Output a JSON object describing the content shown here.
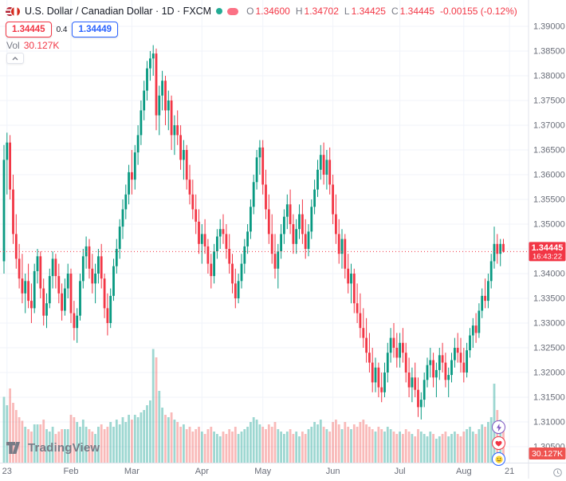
{
  "header": {
    "symbol_title": "U.S. Dollar / Canadian Dollar · 1D · FXCM",
    "ohlc": {
      "o_label": "O",
      "o": "1.34600",
      "h_label": "H",
      "h": "1.34702",
      "l_label": "L",
      "l": "1.34425",
      "c_label": "C",
      "c": "1.34445",
      "change": "-0.00155 (-0.12%)"
    },
    "bid": "1.34445",
    "spread": "0.4",
    "ask": "1.34449",
    "vol_label": "Vol",
    "vol_value": "30.127K"
  },
  "footer": {
    "logo_text": "TradingView"
  },
  "colors": {
    "up": "#089981",
    "down": "#f23645",
    "vol_up": "rgba(38,166,154,0.45)",
    "vol_down": "rgba(239,83,80,0.4)",
    "grid": "#f0f3fa",
    "axis_border": "#e0e3eb",
    "axis_text": "#696d78",
    "badge_red": "#f23645",
    "vol_badge": "#ef5350",
    "accent_blue": "#2962ff"
  },
  "chart_data": {
    "type": "candlestick",
    "title": "U.S. Dollar / Canadian Dollar",
    "interval": "1D",
    "exchange": "FXCM",
    "legend_position": "top-left",
    "grid": true,
    "y_axis": {
      "min": 1.305,
      "max": 1.39,
      "step": 0.005,
      "decimals": 5
    },
    "x_labels": [
      {
        "label": "23",
        "i": 1
      },
      {
        "label": "Feb",
        "i": 22
      },
      {
        "label": "Mar",
        "i": 42
      },
      {
        "label": "Apr",
        "i": 65
      },
      {
        "label": "May",
        "i": 85
      },
      {
        "label": "Jun",
        "i": 108
      },
      {
        "label": "Jul",
        "i": 130
      },
      {
        "label": "Aug",
        "i": 151
      },
      {
        "label": "21",
        "i": 166
      }
    ],
    "last_close": 1.34445,
    "last_price_label": "1.34445",
    "countdown": "16:43:22",
    "volume_label": "30.127K",
    "volume_units": "K",
    "candles_format": [
      "open",
      "high",
      "low",
      "close",
      "volume_K"
    ],
    "candles": [
      [
        1.3425,
        1.366,
        1.34,
        1.363,
        55
      ],
      [
        1.363,
        1.3685,
        1.356,
        1.3665,
        48
      ],
      [
        1.3665,
        1.368,
        1.355,
        1.357,
        62
      ],
      [
        1.357,
        1.36,
        1.346,
        1.348,
        50
      ],
      [
        1.348,
        1.352,
        1.341,
        1.343,
        44
      ],
      [
        1.343,
        1.346,
        1.337,
        1.339,
        38
      ],
      [
        1.339,
        1.344,
        1.334,
        1.336,
        35
      ],
      [
        1.336,
        1.34,
        1.332,
        1.3385,
        30
      ],
      [
        1.3385,
        1.342,
        1.333,
        1.3345,
        28
      ],
      [
        1.3345,
        1.338,
        1.33,
        1.333,
        26
      ],
      [
        1.333,
        1.342,
        1.332,
        1.3405,
        32
      ],
      [
        1.3405,
        1.345,
        1.338,
        1.3435,
        32
      ],
      [
        1.3435,
        1.3445,
        1.335,
        1.337,
        32
      ],
      [
        1.337,
        1.339,
        1.3295,
        1.3315,
        36
      ],
      [
        1.3315,
        1.336,
        1.329,
        1.334,
        28
      ],
      [
        1.334,
        1.341,
        1.333,
        1.3395,
        26
      ],
      [
        1.3395,
        1.3445,
        1.337,
        1.343,
        30
      ],
      [
        1.343,
        1.344,
        1.337,
        1.3395,
        24
      ],
      [
        1.3395,
        1.342,
        1.334,
        1.336,
        26
      ],
      [
        1.336,
        1.338,
        1.3305,
        1.3325,
        28
      ],
      [
        1.3325,
        1.339,
        1.3315,
        1.337,
        28
      ],
      [
        1.337,
        1.342,
        1.335,
        1.34,
        28
      ],
      [
        1.34,
        1.341,
        1.33,
        1.332,
        40
      ],
      [
        1.332,
        1.3345,
        1.3265,
        1.329,
        38
      ],
      [
        1.329,
        1.333,
        1.326,
        1.3315,
        34
      ],
      [
        1.3315,
        1.34,
        1.3305,
        1.3385,
        30
      ],
      [
        1.3385,
        1.345,
        1.337,
        1.3435,
        36
      ],
      [
        1.3435,
        1.3475,
        1.341,
        1.3455,
        30
      ],
      [
        1.3455,
        1.347,
        1.339,
        1.341,
        28
      ],
      [
        1.341,
        1.344,
        1.336,
        1.338,
        26
      ],
      [
        1.338,
        1.342,
        1.334,
        1.34,
        24
      ],
      [
        1.34,
        1.345,
        1.338,
        1.3435,
        30
      ],
      [
        1.3435,
        1.346,
        1.337,
        1.339,
        32
      ],
      [
        1.339,
        1.34,
        1.331,
        1.333,
        28
      ],
      [
        1.333,
        1.336,
        1.3275,
        1.33,
        30
      ],
      [
        1.33,
        1.337,
        1.329,
        1.3355,
        34
      ],
      [
        1.3355,
        1.343,
        1.3345,
        1.3415,
        30
      ],
      [
        1.3415,
        1.347,
        1.34,
        1.345,
        36
      ],
      [
        1.345,
        1.351,
        1.343,
        1.3495,
        32
      ],
      [
        1.3495,
        1.355,
        1.347,
        1.353,
        38
      ],
      [
        1.353,
        1.358,
        1.351,
        1.356,
        34
      ],
      [
        1.356,
        1.362,
        1.354,
        1.3605,
        40
      ],
      [
        1.3605,
        1.365,
        1.356,
        1.359,
        36
      ],
      [
        1.359,
        1.366,
        1.357,
        1.3645,
        40
      ],
      [
        1.3645,
        1.37,
        1.362,
        1.368,
        38
      ],
      [
        1.368,
        1.375,
        1.366,
        1.373,
        42
      ],
      [
        1.373,
        1.379,
        1.371,
        1.377,
        44
      ],
      [
        1.377,
        1.383,
        1.375,
        1.3815,
        48
      ],
      [
        1.3815,
        1.385,
        1.379,
        1.3835,
        52
      ],
      [
        1.3835,
        1.3862,
        1.38,
        1.3845,
        95
      ],
      [
        1.3845,
        1.3855,
        1.369,
        1.372,
        88
      ],
      [
        1.372,
        1.378,
        1.368,
        1.376,
        60
      ],
      [
        1.376,
        1.381,
        1.373,
        1.379,
        46
      ],
      [
        1.379,
        1.38,
        1.37,
        1.373,
        40
      ],
      [
        1.373,
        1.377,
        1.369,
        1.375,
        38
      ],
      [
        1.375,
        1.376,
        1.365,
        1.368,
        42
      ],
      [
        1.368,
        1.372,
        1.364,
        1.37,
        36
      ],
      [
        1.37,
        1.373,
        1.366,
        1.368,
        34
      ],
      [
        1.368,
        1.37,
        1.361,
        1.363,
        30
      ],
      [
        1.363,
        1.367,
        1.359,
        1.365,
        32
      ],
      [
        1.365,
        1.366,
        1.357,
        1.359,
        28
      ],
      [
        1.359,
        1.362,
        1.354,
        1.356,
        30
      ],
      [
        1.356,
        1.359,
        1.351,
        1.353,
        26
      ],
      [
        1.353,
        1.356,
        1.348,
        1.3505,
        28
      ],
      [
        1.3505,
        1.353,
        1.344,
        1.346,
        30
      ],
      [
        1.346,
        1.35,
        1.342,
        1.348,
        26
      ],
      [
        1.348,
        1.351,
        1.344,
        1.3455,
        24
      ],
      [
        1.3455,
        1.347,
        1.34,
        1.342,
        28
      ],
      [
        1.342,
        1.344,
        1.337,
        1.3395,
        30
      ],
      [
        1.3395,
        1.346,
        1.338,
        1.3445,
        26
      ],
      [
        1.3445,
        1.349,
        1.343,
        1.3475,
        24
      ],
      [
        1.3475,
        1.351,
        1.345,
        1.349,
        22
      ],
      [
        1.349,
        1.352,
        1.346,
        1.348,
        26
      ],
      [
        1.348,
        1.35,
        1.343,
        1.345,
        24
      ],
      [
        1.345,
        1.348,
        1.34,
        1.342,
        28
      ],
      [
        1.342,
        1.344,
        1.336,
        1.338,
        26
      ],
      [
        1.338,
        1.341,
        1.333,
        1.335,
        30
      ],
      [
        1.335,
        1.34,
        1.334,
        1.3385,
        24
      ],
      [
        1.3385,
        1.344,
        1.337,
        1.342,
        26
      ],
      [
        1.342,
        1.347,
        1.34,
        1.3455,
        28
      ],
      [
        1.3455,
        1.35,
        1.344,
        1.3485,
        30
      ],
      [
        1.3485,
        1.355,
        1.347,
        1.3535,
        34
      ],
      [
        1.3535,
        1.36,
        1.352,
        1.3585,
        38
      ],
      [
        1.3585,
        1.365,
        1.357,
        1.3635,
        36
      ],
      [
        1.3635,
        1.367,
        1.36,
        1.3655,
        32
      ],
      [
        1.3655,
        1.367,
        1.356,
        1.358,
        30
      ],
      [
        1.358,
        1.361,
        1.351,
        1.353,
        28
      ],
      [
        1.353,
        1.356,
        1.346,
        1.348,
        32
      ],
      [
        1.348,
        1.352,
        1.342,
        1.344,
        30
      ],
      [
        1.344,
        1.348,
        1.339,
        1.341,
        34
      ],
      [
        1.341,
        1.346,
        1.337,
        1.3445,
        28
      ],
      [
        1.3445,
        1.35,
        1.343,
        1.348,
        26
      ],
      [
        1.348,
        1.353,
        1.346,
        1.3515,
        24
      ],
      [
        1.3515,
        1.356,
        1.349,
        1.354,
        26
      ],
      [
        1.354,
        1.357,
        1.348,
        1.35,
        28
      ],
      [
        1.35,
        1.352,
        1.344,
        1.346,
        24
      ],
      [
        1.346,
        1.351,
        1.344,
        1.349,
        26
      ],
      [
        1.349,
        1.354,
        1.347,
        1.352,
        22
      ],
      [
        1.352,
        1.355,
        1.346,
        1.348,
        26
      ],
      [
        1.348,
        1.351,
        1.343,
        1.345,
        24
      ],
      [
        1.345,
        1.35,
        1.3435,
        1.3485,
        28
      ],
      [
        1.3485,
        1.355,
        1.347,
        1.3535,
        30
      ],
      [
        1.3535,
        1.359,
        1.352,
        1.357,
        34
      ],
      [
        1.357,
        1.363,
        1.3555,
        1.361,
        32
      ],
      [
        1.361,
        1.366,
        1.359,
        1.364,
        36
      ],
      [
        1.364,
        1.3665,
        1.358,
        1.36,
        30
      ],
      [
        1.36,
        1.365,
        1.357,
        1.363,
        28
      ],
      [
        1.363,
        1.3655,
        1.356,
        1.358,
        26
      ],
      [
        1.358,
        1.36,
        1.35,
        1.352,
        34
      ],
      [
        1.352,
        1.356,
        1.346,
        1.348,
        36
      ],
      [
        1.348,
        1.351,
        1.342,
        1.344,
        32
      ],
      [
        1.344,
        1.349,
        1.341,
        1.347,
        28
      ],
      [
        1.347,
        1.348,
        1.339,
        1.341,
        34
      ],
      [
        1.341,
        1.344,
        1.336,
        1.338,
        30
      ],
      [
        1.338,
        1.342,
        1.334,
        1.34,
        28
      ],
      [
        1.34,
        1.341,
        1.332,
        1.334,
        32
      ],
      [
        1.334,
        1.338,
        1.33,
        1.332,
        30
      ],
      [
        1.332,
        1.336,
        1.327,
        1.329,
        34
      ],
      [
        1.329,
        1.333,
        1.325,
        1.327,
        36
      ],
      [
        1.327,
        1.331,
        1.322,
        1.324,
        32
      ],
      [
        1.324,
        1.328,
        1.32,
        1.322,
        30
      ],
      [
        1.322,
        1.325,
        1.316,
        1.318,
        28
      ],
      [
        1.318,
        1.323,
        1.316,
        1.321,
        26
      ],
      [
        1.321,
        1.322,
        1.315,
        1.317,
        30
      ],
      [
        1.317,
        1.32,
        1.314,
        1.316,
        28
      ],
      [
        1.316,
        1.322,
        1.315,
        1.32,
        26
      ],
      [
        1.32,
        1.326,
        1.318,
        1.324,
        30
      ],
      [
        1.324,
        1.329,
        1.322,
        1.327,
        28
      ],
      [
        1.327,
        1.33,
        1.323,
        1.325,
        26
      ],
      [
        1.325,
        1.328,
        1.321,
        1.323,
        24
      ],
      [
        1.323,
        1.328,
        1.321,
        1.326,
        26
      ],
      [
        1.326,
        1.329,
        1.322,
        1.324,
        24
      ],
      [
        1.324,
        1.326,
        1.318,
        1.32,
        28
      ],
      [
        1.32,
        1.323,
        1.315,
        1.317,
        26
      ],
      [
        1.317,
        1.321,
        1.314,
        1.319,
        24
      ],
      [
        1.319,
        1.322,
        1.315,
        1.3165,
        22
      ],
      [
        1.3165,
        1.319,
        1.311,
        1.313,
        28
      ],
      [
        1.313,
        1.316,
        1.3105,
        1.3145,
        26
      ],
      [
        1.3145,
        1.32,
        1.313,
        1.3185,
        24
      ],
      [
        1.3185,
        1.323,
        1.317,
        1.3215,
        22
      ],
      [
        1.3215,
        1.325,
        1.319,
        1.3225,
        26
      ],
      [
        1.3225,
        1.324,
        1.317,
        1.319,
        24
      ],
      [
        1.319,
        1.322,
        1.315,
        1.3205,
        20
      ],
      [
        1.3205,
        1.325,
        1.3185,
        1.3235,
        22
      ],
      [
        1.3235,
        1.326,
        1.32,
        1.322,
        24
      ],
      [
        1.322,
        1.324,
        1.317,
        1.3185,
        26
      ],
      [
        1.3185,
        1.321,
        1.315,
        1.3195,
        22
      ],
      [
        1.3195,
        1.324,
        1.318,
        1.3225,
        24
      ],
      [
        1.3225,
        1.327,
        1.321,
        1.325,
        26
      ],
      [
        1.325,
        1.328,
        1.322,
        1.324,
        24
      ],
      [
        1.324,
        1.327,
        1.32,
        1.322,
        22
      ],
      [
        1.322,
        1.325,
        1.318,
        1.32,
        26
      ],
      [
        1.32,
        1.326,
        1.319,
        1.3245,
        28
      ],
      [
        1.3245,
        1.329,
        1.323,
        1.3275,
        30
      ],
      [
        1.3275,
        1.331,
        1.325,
        1.3295,
        26
      ],
      [
        1.3295,
        1.332,
        1.326,
        1.328,
        24
      ],
      [
        1.328,
        1.334,
        1.327,
        1.3325,
        28
      ],
      [
        1.3325,
        1.337,
        1.331,
        1.3355,
        32
      ],
      [
        1.3355,
        1.339,
        1.333,
        1.3345,
        30
      ],
      [
        1.3345,
        1.34,
        1.333,
        1.3385,
        34
      ],
      [
        1.3385,
        1.344,
        1.337,
        1.3425,
        38
      ],
      [
        1.3425,
        1.3495,
        1.341,
        1.346,
        66
      ],
      [
        1.346,
        1.348,
        1.342,
        1.344,
        44
      ],
      [
        1.344,
        1.347,
        1.3415,
        1.346,
        36
      ],
      [
        1.346,
        1.34702,
        1.34425,
        1.34445,
        30.127
      ]
    ]
  }
}
